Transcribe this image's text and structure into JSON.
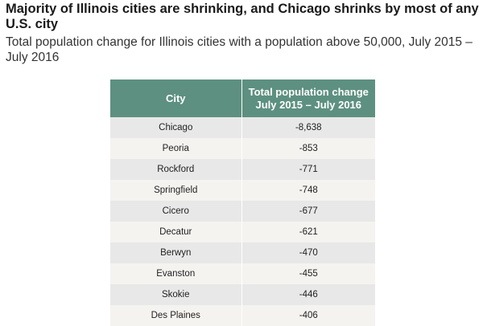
{
  "title": "Majority of Illinois cities are shrinking, and Chicago shrinks by most of any U.S. city",
  "subtitle": "Total population change for Illinois cities with a population above 50,000, July 2015 – July 2016",
  "colors": {
    "header_bg": "#5d9080",
    "header_text": "#ffffff",
    "row_odd": "#e8e8e8",
    "row_even": "#f5f3f0"
  },
  "chart_data": {
    "type": "table",
    "title": "Majority of Illinois cities are shrinking, and Chicago shrinks by most of any U.S. city",
    "subtitle": "Total population change for Illinois cities with a population above 50,000, July 2015 – July 2016",
    "columns": [
      "City",
      "Total population change July 2015 – July 2016"
    ],
    "header_lines": [
      [
        "City"
      ],
      [
        "Total population change",
        "July 2015 – July 2016"
      ]
    ],
    "rows": [
      {
        "city": "Chicago",
        "change": "-8,638",
        "value": -8638
      },
      {
        "city": "Peoria",
        "change": "-853",
        "value": -853
      },
      {
        "city": "Rockford",
        "change": "-771",
        "value": -771
      },
      {
        "city": "Springfield",
        "change": "-748",
        "value": -748
      },
      {
        "city": "Cicero",
        "change": "-677",
        "value": -677
      },
      {
        "city": "Decatur",
        "change": "-621",
        "value": -621
      },
      {
        "city": "Berwyn",
        "change": "-470",
        "value": -470
      },
      {
        "city": "Evanston",
        "change": "-455",
        "value": -455
      },
      {
        "city": "Skokie",
        "change": "-446",
        "value": -446
      },
      {
        "city": "Des Plaines",
        "change": "-406",
        "value": -406
      }
    ]
  }
}
